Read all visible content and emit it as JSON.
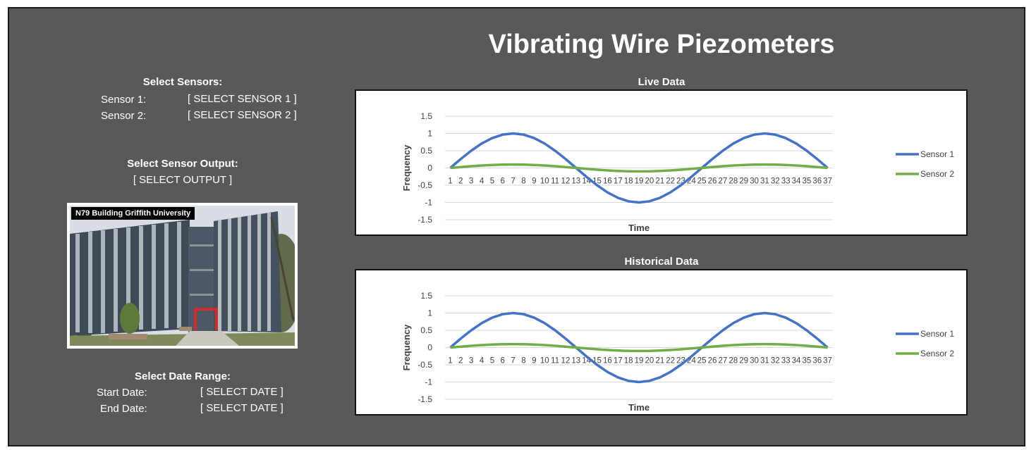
{
  "title": "Vibrating Wire Piezometers",
  "sensors": {
    "heading": "Select Sensors:",
    "sensor1_label": "Sensor 1:",
    "sensor1_value": "[ SELECT SENSOR 1 ]",
    "sensor2_label": "Sensor 2:",
    "sensor2_value": "[ SELECT SENSOR 2 ]"
  },
  "output": {
    "heading": "Select Sensor Output:",
    "value": "[ SELECT OUTPUT ]"
  },
  "photo": {
    "caption": "N79 Building Griffith University"
  },
  "date_range": {
    "heading": "Select Date Range:",
    "start_label": "Start Date:",
    "start_value": "[ SELECT DATE ]",
    "end_label": "End Date:",
    "end_value": "[ SELECT DATE ]"
  },
  "colors": {
    "background": "#595959",
    "sensor1": "#4472C4",
    "sensor2": "#70AD47"
  },
  "chart_data": [
    {
      "type": "line",
      "title": "Live Data",
      "xlabel": "Time",
      "ylabel": "Frequency",
      "ylim": [
        -1.5,
        1.5
      ],
      "yticks": [
        1.5,
        1,
        0.5,
        0,
        -0.5,
        -1,
        -1.5
      ],
      "grid": true,
      "legend": "right",
      "x": [
        1,
        2,
        3,
        4,
        5,
        6,
        7,
        8,
        9,
        10,
        11,
        12,
        13,
        14,
        15,
        16,
        17,
        18,
        19,
        20,
        21,
        22,
        23,
        24,
        25,
        26,
        27,
        28,
        29,
        30,
        31,
        32,
        33,
        34,
        35,
        36,
        37
      ],
      "series": [
        {
          "name": "Sensor 1",
          "values": [
            0,
            0.259,
            0.5,
            0.707,
            0.866,
            0.966,
            1,
            0.966,
            0.866,
            0.707,
            0.5,
            0.259,
            0,
            -0.259,
            -0.5,
            -0.707,
            -0.866,
            -0.966,
            -1,
            -0.966,
            -0.866,
            -0.707,
            -0.5,
            -0.259,
            0,
            0.259,
            0.5,
            0.707,
            0.866,
            0.966,
            1,
            0.966,
            0.866,
            0.707,
            0.5,
            0.259,
            0
          ]
        },
        {
          "name": "Sensor 2",
          "values": [
            0,
            0.026,
            0.05,
            0.071,
            0.087,
            0.097,
            0.1,
            0.097,
            0.087,
            0.071,
            0.05,
            0.026,
            0,
            -0.026,
            -0.05,
            -0.071,
            -0.087,
            -0.097,
            -0.1,
            -0.097,
            -0.087,
            -0.071,
            -0.05,
            -0.026,
            0,
            0.026,
            0.05,
            0.071,
            0.087,
            0.097,
            0.1,
            0.097,
            0.087,
            0.071,
            0.05,
            0.026,
            0
          ]
        }
      ]
    },
    {
      "type": "line",
      "title": "Historical Data",
      "xlabel": "Time",
      "ylabel": "Frequency",
      "ylim": [
        -1.5,
        1.5
      ],
      "yticks": [
        1.5,
        1,
        0.5,
        0,
        -0.5,
        -1,
        -1.5
      ],
      "grid": true,
      "legend": "right",
      "x": [
        1,
        2,
        3,
        4,
        5,
        6,
        7,
        8,
        9,
        10,
        11,
        12,
        13,
        14,
        15,
        16,
        17,
        18,
        19,
        20,
        21,
        22,
        23,
        24,
        25,
        26,
        27,
        28,
        29,
        30,
        31,
        32,
        33,
        34,
        35,
        36,
        37
      ],
      "series": [
        {
          "name": "Sensor 1",
          "values": [
            0,
            0.259,
            0.5,
            0.707,
            0.866,
            0.966,
            1,
            0.966,
            0.866,
            0.707,
            0.5,
            0.259,
            0,
            -0.259,
            -0.5,
            -0.707,
            -0.866,
            -0.966,
            -1,
            -0.966,
            -0.866,
            -0.707,
            -0.5,
            -0.259,
            0,
            0.259,
            0.5,
            0.707,
            0.866,
            0.966,
            1,
            0.966,
            0.866,
            0.707,
            0.5,
            0.259,
            0
          ]
        },
        {
          "name": "Sensor 2",
          "values": [
            0,
            0.026,
            0.05,
            0.071,
            0.087,
            0.097,
            0.1,
            0.097,
            0.087,
            0.071,
            0.05,
            0.026,
            0,
            -0.026,
            -0.05,
            -0.071,
            -0.087,
            -0.097,
            -0.1,
            -0.097,
            -0.087,
            -0.071,
            -0.05,
            -0.026,
            0,
            0.026,
            0.05,
            0.071,
            0.087,
            0.097,
            0.1,
            0.097,
            0.087,
            0.071,
            0.05,
            0.026,
            0
          ]
        }
      ]
    }
  ]
}
